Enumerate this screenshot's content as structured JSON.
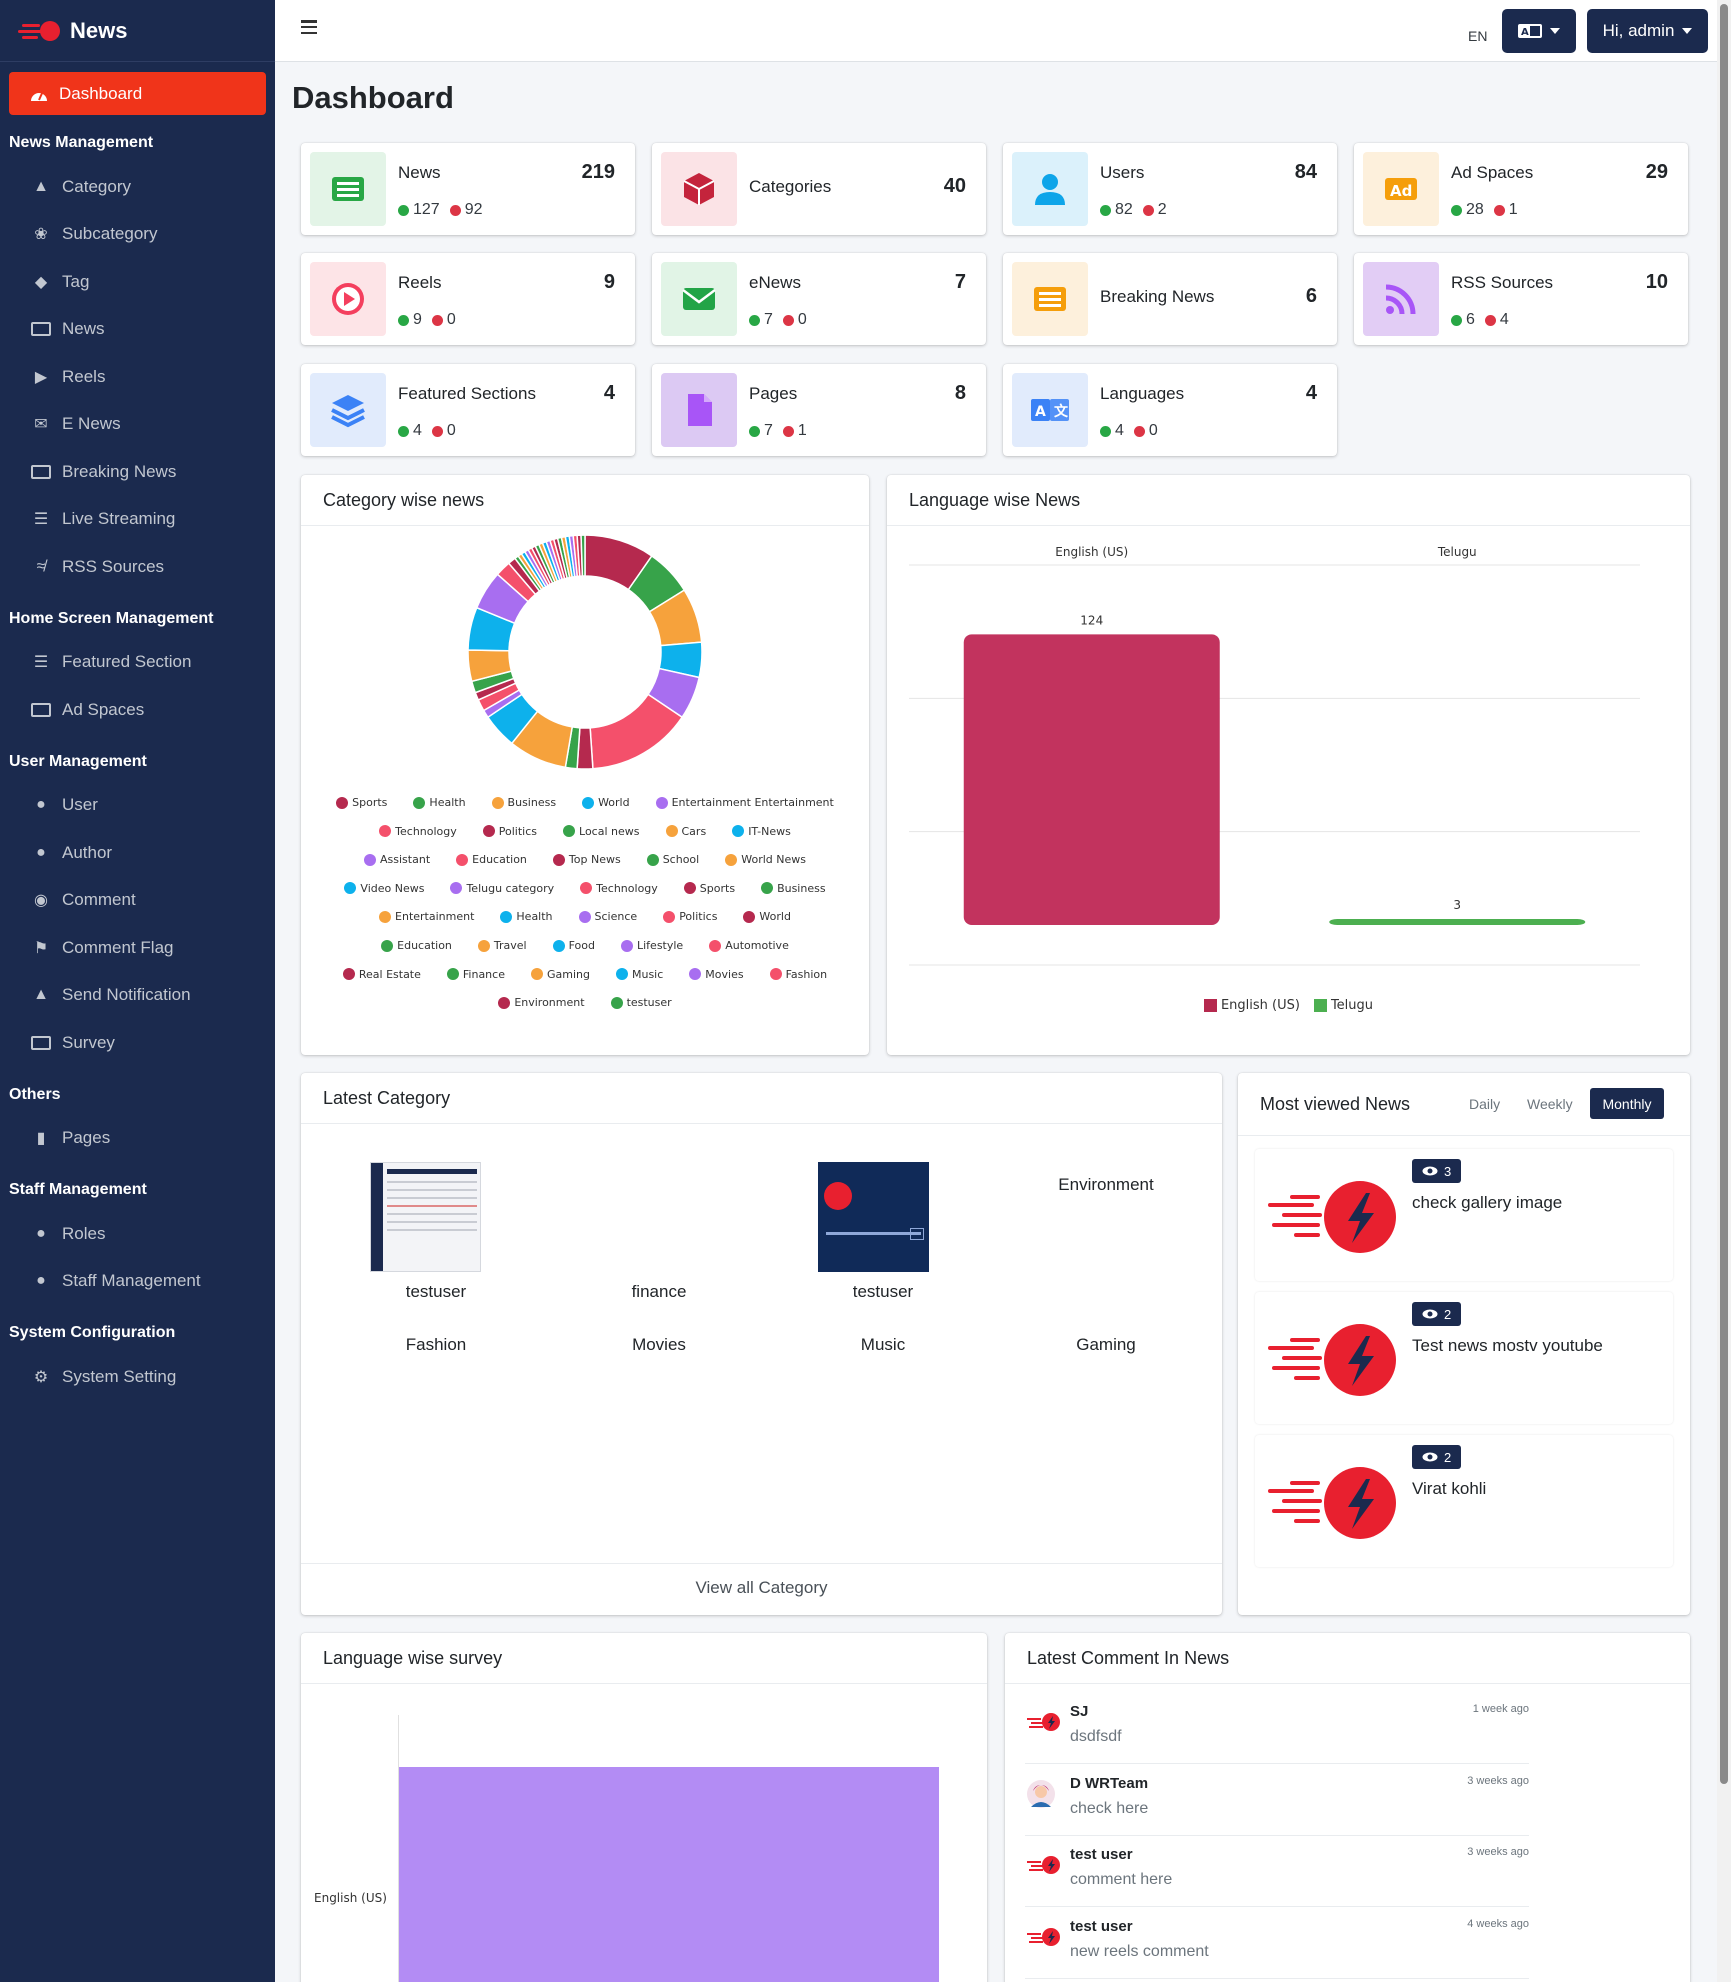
{
  "brand": {
    "name": "News"
  },
  "sidebar": {
    "active": "Dashboard",
    "sections": [
      {
        "header": "News Management",
        "items": [
          "Category",
          "Subcategory",
          "Tag",
          "News",
          "Reels",
          "E News",
          "Breaking News",
          "Live Streaming",
          "RSS Sources"
        ]
      },
      {
        "header": "Home Screen Management",
        "items": [
          "Featured Section",
          "Ad Spaces"
        ]
      },
      {
        "header": "User Management",
        "items": [
          "User",
          "Author",
          "Comment",
          "Comment Flag",
          "Send Notification",
          "Survey"
        ]
      },
      {
        "header": "Others",
        "items": [
          "Pages"
        ]
      },
      {
        "header": "Staff Management",
        "items": [
          "Roles",
          "Staff Management"
        ]
      },
      {
        "header": "System Configuration",
        "items": [
          "System Setting"
        ]
      }
    ]
  },
  "topbar": {
    "lang_code": "EN",
    "user_label": "Hi, admin"
  },
  "page": {
    "title": "Dashboard"
  },
  "stats": [
    {
      "label": "News",
      "value": "219",
      "active": "127",
      "inactive": "92",
      "color": "#28a745",
      "bg": "#e3f4e7",
      "icon": "newspaper-icon"
    },
    {
      "label": "Categories",
      "value": "40",
      "color": "#c4243c",
      "bg": "#fbe3e6",
      "icon": "cube-icon"
    },
    {
      "label": "Users",
      "value": "84",
      "active": "82",
      "inactive": "2",
      "color": "#0ea5e9",
      "bg": "#dbf1fb",
      "icon": "user-icon"
    },
    {
      "label": "Ad Spaces",
      "value": "29",
      "active": "28",
      "inactive": "1",
      "color": "#f59e0b",
      "bg": "#fdf0dc",
      "icon": "ad-icon"
    },
    {
      "label": "Reels",
      "value": "9",
      "active": "9",
      "inactive": "0",
      "color": "#f43f5e",
      "bg": "#fde4e7",
      "icon": "play-icon"
    },
    {
      "label": "eNews",
      "value": "7",
      "active": "7",
      "inactive": "0",
      "color": "#22a447",
      "bg": "#e1f4e6",
      "icon": "envelope-icon"
    },
    {
      "label": "Breaking News",
      "value": "6",
      "color": "#f59e0b",
      "bg": "#fdf0dc",
      "icon": "breaking-news-icon"
    },
    {
      "label": "RSS Sources",
      "value": "10",
      "active": "6",
      "inactive": "4",
      "color": "#a855f7",
      "bg": "#e2cdf5",
      "icon": "rss-icon"
    },
    {
      "label": "Featured Sections",
      "value": "4",
      "active": "4",
      "inactive": "0",
      "color": "#3b82f6",
      "bg": "#e1ebfc",
      "icon": "layers-icon"
    },
    {
      "label": "Pages",
      "value": "8",
      "active": "7",
      "inactive": "1",
      "color": "#a855f7",
      "bg": "#dcc9f3",
      "icon": "page-icon"
    },
    {
      "label": "Languages",
      "value": "4",
      "active": "4",
      "inactive": "0",
      "color": "#3b82f6",
      "bg": "#e1ebfc",
      "icon": "translate-icon"
    }
  ],
  "category_chart": {
    "title": "Category wise news",
    "legend": [
      [
        "Sports",
        "Health",
        "Business",
        "World",
        "Entertainment Entertainment"
      ],
      [
        "Technology",
        "Politics",
        "Local news",
        "Cars",
        "IT-News"
      ],
      [
        "Assistant",
        "Education",
        "Top News",
        "School",
        "World News"
      ],
      [
        "Video News",
        "Telugu category",
        "Technology",
        "Sports",
        "Business"
      ],
      [
        "Entertainment",
        "Health",
        "Science",
        "Politics",
        "World"
      ],
      [
        "Education",
        "Travel",
        "Food",
        "Lifestyle",
        "Automotive"
      ],
      [
        "Real Estate",
        "Finance",
        "Gaming",
        "Music",
        "Movies",
        "Fashion"
      ],
      [
        "Environment",
        "testuser"
      ]
    ],
    "palette": [
      "#b5294e",
      "#37a34a",
      "#f6a23c",
      "#0db1ec",
      "#a86ef0",
      "#f4506b"
    ]
  },
  "chart_data": [
    {
      "type": "pie",
      "title": "Category wise news",
      "categories": [
        "Sports",
        "Health",
        "Business",
        "World",
        "Entertainment Entertainment",
        "Technology",
        "Politics",
        "Local news",
        "Cars",
        "IT-News",
        "Assistant",
        "Education",
        "Top News",
        "School",
        "World News",
        "Video News",
        "Telugu category",
        "Technology",
        "Sports",
        "Business",
        "Entertainment",
        "Health",
        "Science",
        "Politics",
        "World",
        "Education",
        "Travel",
        "Food",
        "Lifestyle",
        "Automotive",
        "Real Estate",
        "Finance",
        "Gaming",
        "Music",
        "Movies",
        "Fashion",
        "Environment",
        "testuser"
      ],
      "values": [
        18,
        12,
        14,
        9,
        11,
        27,
        4,
        3,
        15,
        9,
        2,
        3,
        2,
        3,
        8,
        11,
        10,
        4,
        2,
        1,
        1,
        1,
        1,
        1,
        1,
        1,
        1,
        1,
        1,
        1,
        1,
        1,
        1,
        1,
        1,
        1,
        1,
        1
      ],
      "legend_position": "bottom"
    },
    {
      "type": "bar",
      "title": "Language wise News",
      "categories": [
        "English (US)",
        "Telugu"
      ],
      "values": [
        124,
        3
      ],
      "colors": [
        "#c2335e",
        "#4caf50"
      ],
      "ylim": [
        0,
        150
      ],
      "legend_position": "bottom"
    },
    {
      "type": "bar",
      "title": "Language wise survey",
      "orientation": "horizontal",
      "categories": [
        "English (US)"
      ],
      "values": [
        1
      ],
      "colors": [
        "#b38cf4"
      ]
    }
  ],
  "language_chart": {
    "title": "Language wise News",
    "top_labels": [
      "English (US)",
      "Telugu"
    ],
    "bar_values": [
      "124",
      "3"
    ],
    "legend": [
      "English (US)",
      "Telugu"
    ]
  },
  "latest_category": {
    "title": "Latest Category",
    "items": [
      "testuser",
      "finance",
      "testuser",
      "Environment",
      "Fashion",
      "Movies",
      "Music",
      "Gaming"
    ],
    "view_all": "View all Category"
  },
  "most_viewed": {
    "title": "Most viewed News",
    "tabs": [
      "Daily",
      "Weekly",
      "Monthly"
    ],
    "active_tab": "Monthly",
    "items": [
      {
        "views": "3",
        "title": "check gallery image"
      },
      {
        "views": "2",
        "title": "Test news mostv youtube"
      },
      {
        "views": "2",
        "title": "Virat kohli"
      }
    ]
  },
  "survey": {
    "title": "Language wise survey",
    "label": "English (US)"
  },
  "latest_comments": {
    "title": "Latest Comment In News",
    "items": [
      {
        "name": "SJ",
        "text": "dsdfsdf",
        "time": "1 week ago",
        "avatar": "news-logo-icon"
      },
      {
        "name": "D WRTeam",
        "text": "check here",
        "time": "3 weeks ago",
        "avatar": "person-avatar-icon"
      },
      {
        "name": "test user",
        "text": "comment here",
        "time": "3 weeks ago",
        "avatar": "news-logo-icon"
      },
      {
        "name": "test user",
        "text": "new reels comment",
        "time": "4 weeks ago",
        "avatar": "news-logo-icon"
      }
    ]
  }
}
